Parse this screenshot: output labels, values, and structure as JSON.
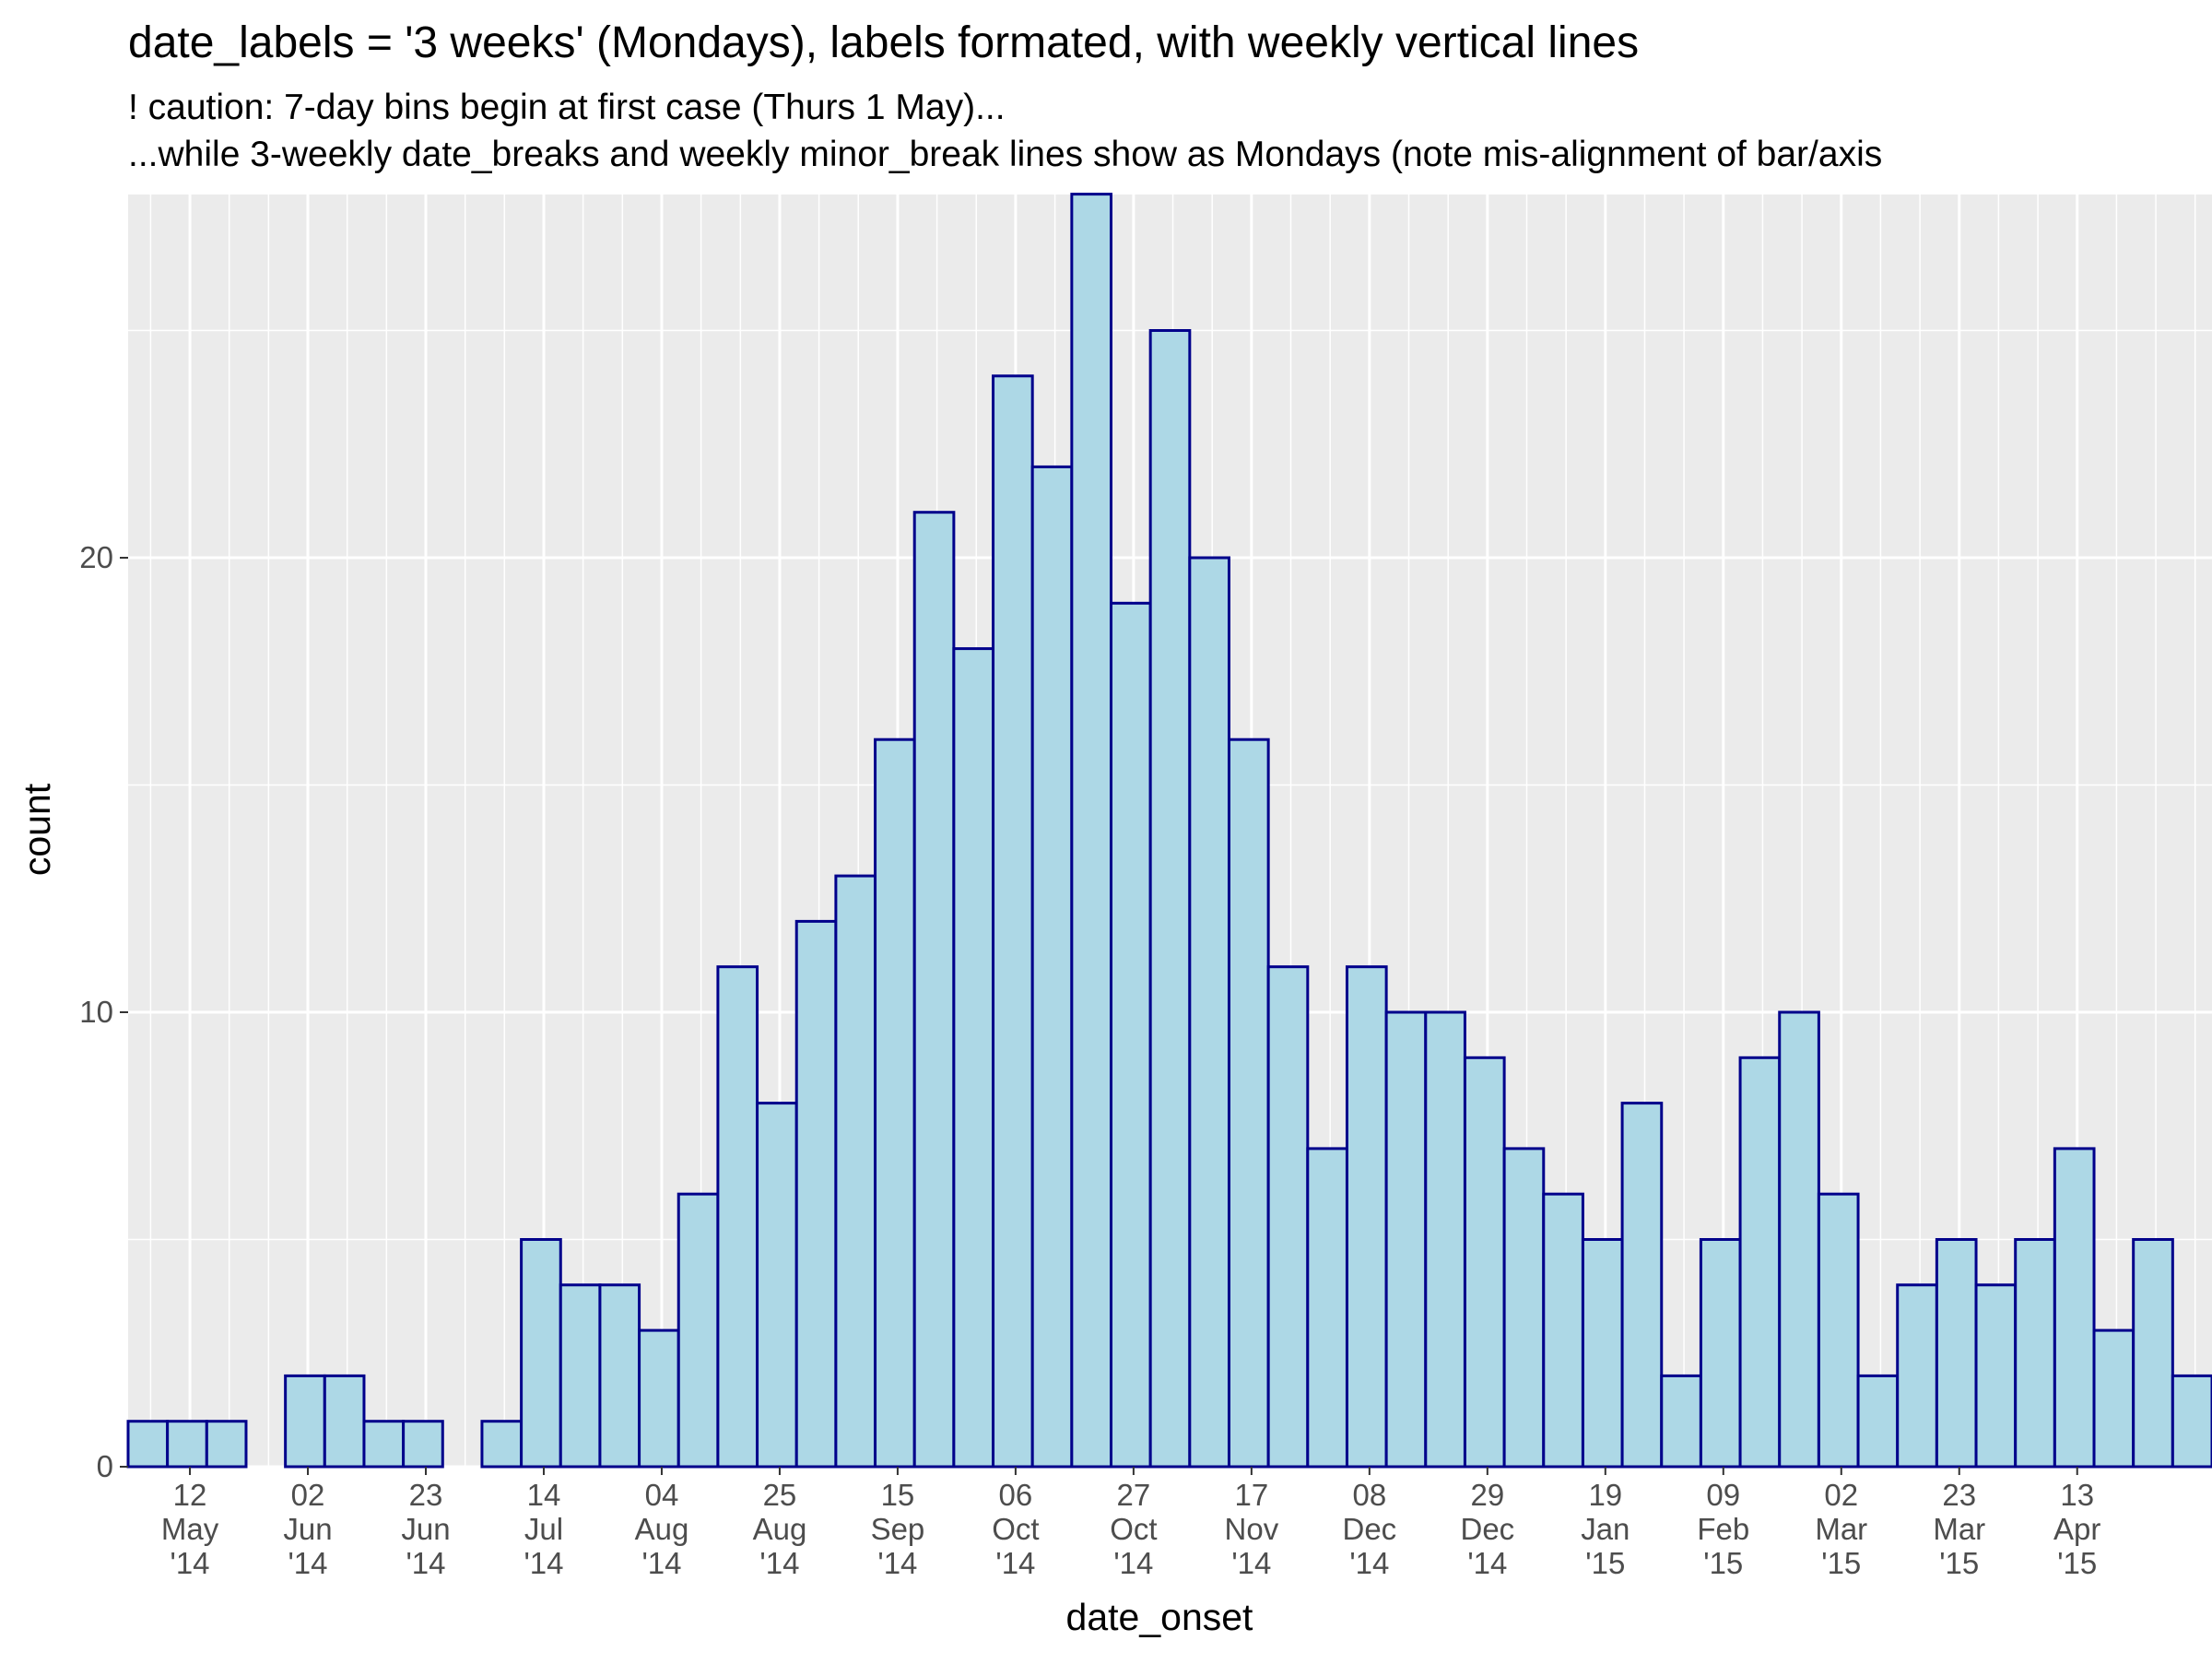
{
  "title": "date_labels = '3 weeks' (Mondays), labels formated, with weekly vertical lines",
  "subtitle_lines": [
    "! caution: 7-day bins begin at first case (Thurs 1 May)...",
    "...while 3-weekly date_breaks and weekly minor_break lines show as Mondays (note mis-alignment of bar/axis"
  ],
  "chart_data": {
    "type": "bar",
    "xlabel": "date_onset",
    "ylabel": "count",
    "xlim": [
      "2014-05-01",
      "2015-05-07"
    ],
    "ylim": [
      0,
      28
    ],
    "bin_width_days": 7,
    "bins": [
      {
        "start": "2014-05-01",
        "count": 1
      },
      {
        "start": "2014-05-08",
        "count": 1
      },
      {
        "start": "2014-05-15",
        "count": 1
      },
      {
        "start": "2014-05-22",
        "count": 0
      },
      {
        "start": "2014-05-29",
        "count": 2
      },
      {
        "start": "2014-06-05",
        "count": 2
      },
      {
        "start": "2014-06-12",
        "count": 1
      },
      {
        "start": "2014-06-19",
        "count": 1
      },
      {
        "start": "2014-06-26",
        "count": 0
      },
      {
        "start": "2014-07-03",
        "count": 1
      },
      {
        "start": "2014-07-10",
        "count": 5
      },
      {
        "start": "2014-07-17",
        "count": 4
      },
      {
        "start": "2014-07-24",
        "count": 4
      },
      {
        "start": "2014-07-31",
        "count": 3
      },
      {
        "start": "2014-08-07",
        "count": 6
      },
      {
        "start": "2014-08-14",
        "count": 11
      },
      {
        "start": "2014-08-21",
        "count": 8
      },
      {
        "start": "2014-08-28",
        "count": 12
      },
      {
        "start": "2014-09-04",
        "count": 13
      },
      {
        "start": "2014-09-11",
        "count": 16
      },
      {
        "start": "2014-09-18",
        "count": 21
      },
      {
        "start": "2014-09-25",
        "count": 18
      },
      {
        "start": "2014-10-02",
        "count": 24
      },
      {
        "start": "2014-10-09",
        "count": 22
      },
      {
        "start": "2014-10-16",
        "count": 28
      },
      {
        "start": "2014-10-23",
        "count": 19
      },
      {
        "start": "2014-10-30",
        "count": 25
      },
      {
        "start": "2014-11-06",
        "count": 20
      },
      {
        "start": "2014-11-13",
        "count": 16
      },
      {
        "start": "2014-11-20",
        "count": 11
      },
      {
        "start": "2014-11-27",
        "count": 7
      },
      {
        "start": "2014-12-04",
        "count": 11
      },
      {
        "start": "2014-12-11",
        "count": 10
      },
      {
        "start": "2014-12-18",
        "count": 10
      },
      {
        "start": "2014-12-25",
        "count": 9
      },
      {
        "start": "2015-01-01",
        "count": 7
      },
      {
        "start": "2015-01-08",
        "count": 6
      },
      {
        "start": "2015-01-15",
        "count": 5
      },
      {
        "start": "2015-01-22",
        "count": 8
      },
      {
        "start": "2015-01-29",
        "count": 2
      },
      {
        "start": "2015-02-05",
        "count": 5
      },
      {
        "start": "2015-02-12",
        "count": 9
      },
      {
        "start": "2015-02-19",
        "count": 10
      },
      {
        "start": "2015-02-26",
        "count": 6
      },
      {
        "start": "2015-03-05",
        "count": 2
      },
      {
        "start": "2015-03-12",
        "count": 4
      },
      {
        "start": "2015-03-19",
        "count": 5
      },
      {
        "start": "2015-03-26",
        "count": 4
      },
      {
        "start": "2015-04-02",
        "count": 5
      },
      {
        "start": "2015-04-09",
        "count": 7
      },
      {
        "start": "2015-04-16",
        "count": 3
      },
      {
        "start": "2015-04-23",
        "count": 5
      },
      {
        "start": "2015-04-30",
        "count": 2
      }
    ],
    "y_ticks": [
      0,
      10,
      20
    ],
    "y_minor_ticks": [
      5,
      15,
      25
    ],
    "x_ticks": [
      {
        "date": "2014-05-12",
        "lines": [
          "12",
          "May",
          "'14"
        ]
      },
      {
        "date": "2014-06-02",
        "lines": [
          "02",
          "Jun",
          "'14"
        ]
      },
      {
        "date": "2014-06-23",
        "lines": [
          "23",
          "Jun",
          "'14"
        ]
      },
      {
        "date": "2014-07-14",
        "lines": [
          "14",
          "Jul",
          "'14"
        ]
      },
      {
        "date": "2014-08-04",
        "lines": [
          "04",
          "Aug",
          "'14"
        ]
      },
      {
        "date": "2014-08-25",
        "lines": [
          "25",
          "Aug",
          "'14"
        ]
      },
      {
        "date": "2014-09-15",
        "lines": [
          "15",
          "Sep",
          "'14"
        ]
      },
      {
        "date": "2014-10-06",
        "lines": [
          "06",
          "Oct",
          "'14"
        ]
      },
      {
        "date": "2014-10-27",
        "lines": [
          "27",
          "Oct",
          "'14"
        ]
      },
      {
        "date": "2014-11-17",
        "lines": [
          "17",
          "Nov",
          "'14"
        ]
      },
      {
        "date": "2014-12-08",
        "lines": [
          "08",
          "Dec",
          "'14"
        ]
      },
      {
        "date": "2014-12-29",
        "lines": [
          "29",
          "Dec",
          "'14"
        ]
      },
      {
        "date": "2015-01-19",
        "lines": [
          "19",
          "Jan",
          "'15"
        ]
      },
      {
        "date": "2015-02-09",
        "lines": [
          "09",
          "Feb",
          "'15"
        ]
      },
      {
        "date": "2015-03-02",
        "lines": [
          "02",
          "Mar",
          "'15"
        ]
      },
      {
        "date": "2015-03-23",
        "lines": [
          "23",
          "Mar",
          "'15"
        ]
      },
      {
        "date": "2015-04-13",
        "lines": [
          "13",
          "Apr",
          "'15"
        ]
      }
    ],
    "x_minor_breaks": "weekly Mondays",
    "panel_background": "#ebebeb",
    "bar_fill": "#add8e6",
    "bar_outline": "#00008b",
    "grid": true,
    "legend": "none"
  }
}
